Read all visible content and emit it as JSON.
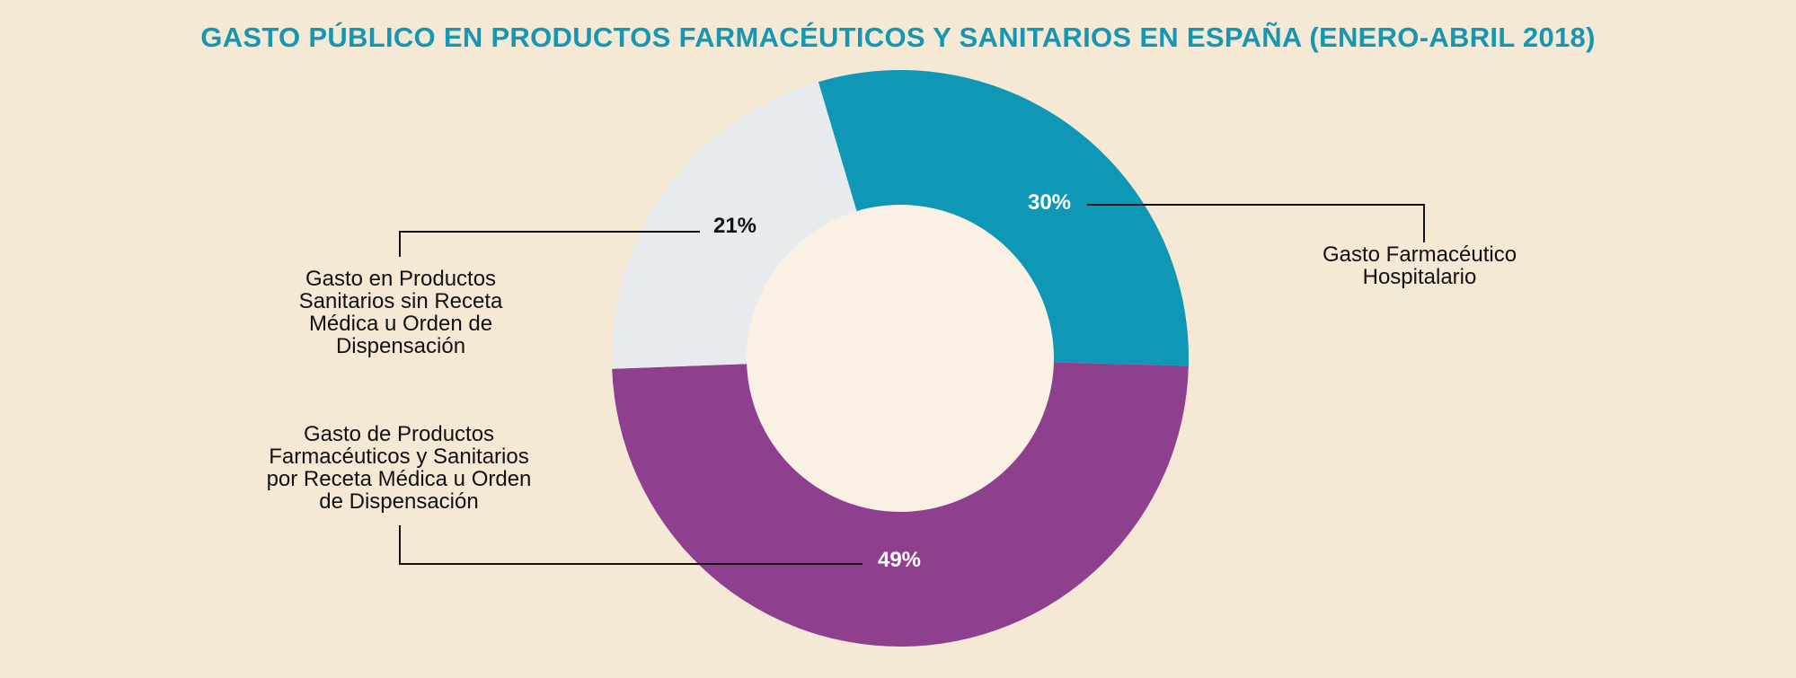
{
  "title": "GASTO PÚBLICO EN PRODUCTOS FARMACÉUTICOS Y SANITARIOS EN ESPAÑA (ENERO-ABRIL 2018)",
  "colors": {
    "title": "#1597b2",
    "hospitalario": "#0f98b5",
    "receta": "#8e408f",
    "sin_receta": "#e7ebee",
    "center": "#faf0e3",
    "leader": "#111111"
  },
  "chart_data": {
    "type": "pie",
    "donut": true,
    "slices": [
      {
        "name": "Gasto Farmacéutico Hospitalario",
        "name_lines": [
          "Gasto Farmacéutico",
          "Hospitalario"
        ],
        "value": 30,
        "label": "30%",
        "color_key": "hospitalario",
        "label_text_color": "#ffffff"
      },
      {
        "name": "Gasto de Productos Farmacéuticos y Sanitarios por Receta Médica u Orden de Dispensación",
        "name_lines": [
          "Gasto de Productos",
          "Farmacéuticos y Sanitarios",
          "por Receta Médica u Orden",
          "de Dispensación"
        ],
        "value": 49,
        "label": "49%",
        "color_key": "receta",
        "label_text_color": "#ffffff"
      },
      {
        "name": "Gasto en Productos Sanitarios sin Receta Médica u Orden de Dispensación",
        "name_lines": [
          "Gasto en Productos",
          "Sanitarios sin Receta",
          "Médica u Orden de",
          "Dispensación"
        ],
        "value": 21,
        "label": "21%",
        "color_key": "sin_receta",
        "label_text_color": "#111111"
      }
    ]
  }
}
